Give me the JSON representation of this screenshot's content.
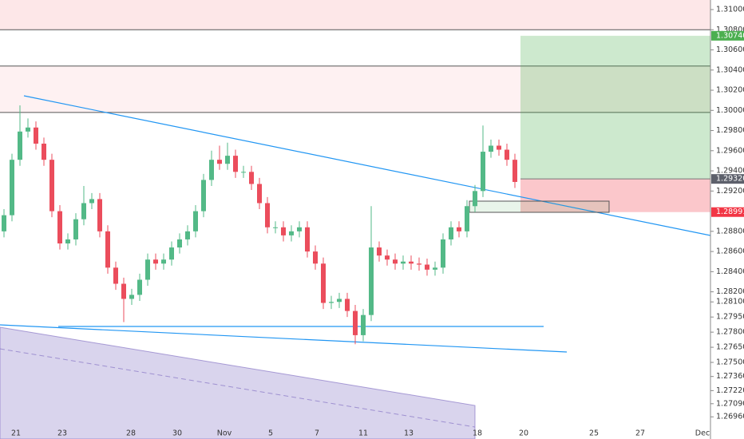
{
  "chart_data": {
    "type": "candlestick",
    "up_color": "#53b987",
    "down_color": "#eb4d5c",
    "xlim": [
      -0.5,
      88.5
    ],
    "ylim": [
      1.2674,
      1.31095
    ],
    "grid": false,
    "xticks": [
      {
        "value": 1.5,
        "label": "21"
      },
      {
        "value": 7.3,
        "label": "23"
      },
      {
        "value": 15.9,
        "label": "28"
      },
      {
        "value": 21.7,
        "label": "30"
      },
      {
        "value": 27.6,
        "label": "Nov"
      },
      {
        "value": 33.4,
        "label": "5"
      },
      {
        "value": 39.2,
        "label": "7"
      },
      {
        "value": 45,
        "label": "11"
      },
      {
        "value": 50.7,
        "label": "13"
      },
      {
        "value": 59.3,
        "label": "18"
      },
      {
        "value": 65.1,
        "label": "20"
      },
      {
        "value": 73.9,
        "label": "25"
      },
      {
        "value": 79.7,
        "label": "27"
      },
      {
        "value": 87.5,
        "label": "Dec"
      }
    ],
    "yticks": [
      {
        "value": 1.31,
        "label": "1.31000"
      },
      {
        "value": 1.308,
        "label": "1.30800"
      },
      {
        "value": 1.306,
        "label": "1.30600"
      },
      {
        "value": 1.304,
        "label": "1.30400"
      },
      {
        "value": 1.302,
        "label": "1.30200"
      },
      {
        "value": 1.3,
        "label": "1.30000"
      },
      {
        "value": 1.298,
        "label": "1.29800"
      },
      {
        "value": 1.296,
        "label": "1.29600"
      },
      {
        "value": 1.294,
        "label": "1.29400"
      },
      {
        "value": 1.292,
        "label": "1.29200"
      },
      {
        "value": 1.288,
        "label": "1.28800"
      },
      {
        "value": 1.286,
        "label": "1.28600"
      },
      {
        "value": 1.284,
        "label": "1.28400"
      },
      {
        "value": 1.282,
        "label": "1.28200"
      },
      {
        "value": 1.281,
        "label": "1.28100"
      },
      {
        "value": 1.2795,
        "label": "1.27950"
      },
      {
        "value": 1.278,
        "label": "1.27800"
      },
      {
        "value": 1.2765,
        "label": "1.27650"
      },
      {
        "value": 1.275,
        "label": "1.27500"
      },
      {
        "value": 1.2736,
        "label": "1.27360"
      },
      {
        "value": 1.2722,
        "label": "1.27220"
      },
      {
        "value": 1.2709,
        "label": "1.27090"
      },
      {
        "value": 1.2696,
        "label": "1.26960"
      }
    ],
    "levels": [
      1.308,
      1.3044,
      1.2998
    ],
    "position": {
      "target": {
        "value": 1.3074,
        "label": "1.30740"
      },
      "entry": {
        "value": 1.2932,
        "label": "1.29320"
      },
      "stop": {
        "value": 1.28991,
        "label": "1.28991"
      }
    },
    "open": [
      1.288,
      1.2896,
      1.2951,
      1.2979,
      1.2983,
      1.2967,
      1.2951,
      1.29,
      1.2868,
      1.2872,
      1.2892,
      1.2908,
      1.2912,
      1.288,
      1.2844,
      1.2828,
      1.2813,
      1.2817,
      1.2832,
      1.2852,
      1.2848,
      1.2852,
      1.2864,
      1.2872,
      1.288,
      1.29,
      1.2931,
      1.2951,
      1.2947,
      1.2955,
      1.2939,
      1.2939,
      1.2927,
      1.2908,
      1.2884,
      1.2884,
      1.2876,
      1.288,
      1.2884,
      1.286,
      1.2848,
      1.2809,
      1.281,
      1.2813,
      1.2801,
      1.2777,
      1.2797,
      1.2864,
      1.2856,
      1.2852,
      1.2848,
      1.285,
      1.2848,
      1.2847,
      1.2842,
      1.2844,
      1.2872,
      1.2884,
      1.288,
      1.2905,
      1.292,
      1.2959,
      1.2965,
      1.2961,
      1.2951
    ],
    "high": [
      1.2902,
      1.2957,
      1.3005,
      1.2992,
      1.2989,
      1.2973,
      1.2957,
      1.2906,
      1.2878,
      1.2898,
      1.2925,
      1.2918,
      1.2918,
      1.2886,
      1.285,
      1.2834,
      1.2823,
      1.2838,
      1.2858,
      1.2858,
      1.2858,
      1.287,
      1.2878,
      1.2886,
      1.2906,
      1.2937,
      1.296,
      1.2965,
      1.2968,
      1.2961,
      1.2945,
      1.2945,
      1.2933,
      1.2914,
      1.289,
      1.289,
      1.2886,
      1.289,
      1.289,
      1.2866,
      1.2854,
      1.2816,
      1.2819,
      1.2819,
      1.2807,
      1.2803,
      1.2905,
      1.287,
      1.2862,
      1.2858,
      1.2856,
      1.2856,
      1.2854,
      1.2853,
      1.285,
      1.2878,
      1.289,
      1.289,
      1.2911,
      1.2926,
      1.2985,
      1.2971,
      1.2971,
      1.2967,
      1.2957
    ],
    "low": [
      1.2874,
      1.289,
      1.2945,
      1.2973,
      1.2961,
      1.2945,
      1.2894,
      1.2862,
      1.2862,
      1.2866,
      1.2886,
      1.2902,
      1.2874,
      1.2838,
      1.2822,
      1.279,
      1.2807,
      1.2811,
      1.2826,
      1.2842,
      1.2842,
      1.2846,
      1.2858,
      1.2866,
      1.2874,
      1.2894,
      1.2925,
      1.2941,
      1.2941,
      1.2933,
      1.2933,
      1.2921,
      1.2902,
      1.2878,
      1.2878,
      1.287,
      1.287,
      1.2874,
      1.2854,
      1.2842,
      1.2803,
      1.2803,
      1.2804,
      1.2795,
      1.2768,
      1.2771,
      1.2791,
      1.285,
      1.2846,
      1.2842,
      1.2842,
      1.2842,
      1.2841,
      1.2836,
      1.2836,
      1.2838,
      1.2866,
      1.2874,
      1.2874,
      1.2899,
      1.2914,
      1.2953,
      1.2955,
      1.2945,
      1.2923
    ],
    "close": [
      1.2896,
      1.2951,
      1.2979,
      1.2983,
      1.2967,
      1.2951,
      1.29,
      1.2868,
      1.2872,
      1.2892,
      1.2908,
      1.2912,
      1.288,
      1.2844,
      1.2828,
      1.2813,
      1.2817,
      1.2832,
      1.2852,
      1.2848,
      1.2852,
      1.2864,
      1.2872,
      1.288,
      1.29,
      1.2931,
      1.2951,
      1.2947,
      1.2955,
      1.2939,
      1.2939,
      1.2927,
      1.2908,
      1.2884,
      1.2884,
      1.2876,
      1.288,
      1.2884,
      1.286,
      1.2848,
      1.2809,
      1.281,
      1.2813,
      1.2801,
      1.2777,
      1.2797,
      1.2864,
      1.2856,
      1.2852,
      1.2848,
      1.285,
      1.2848,
      1.2847,
      1.2842,
      1.2844,
      1.2872,
      1.2884,
      1.288,
      1.2905,
      1.292,
      1.2959,
      1.2965,
      1.2961,
      1.2951,
      1.2929
    ]
  }
}
